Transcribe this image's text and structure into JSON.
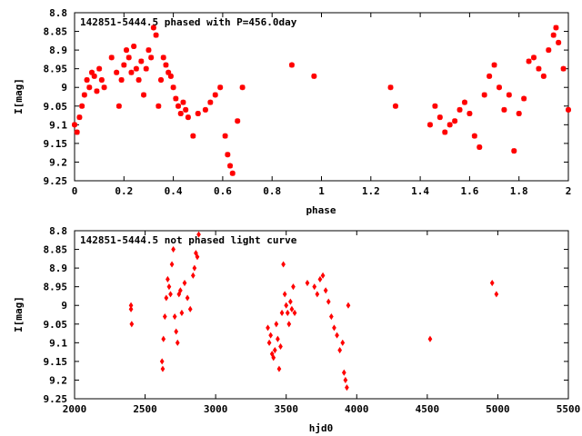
{
  "chart_data": [
    {
      "type": "scatter",
      "title": "142851-5444.5 phased with P=456.0day",
      "xlabel": "phase",
      "ylabel": "I[mag]",
      "xlim": [
        0,
        2
      ],
      "ylim": [
        9.25,
        8.8
      ],
      "y_inverted": true,
      "grid": false,
      "marker": "asterisk",
      "color": "#ff0000",
      "x_ticks": [
        "0",
        "0.2",
        "0.4",
        "0.6",
        "0.8",
        "1",
        "1.2",
        "1.4",
        "1.6",
        "1.8",
        "2"
      ],
      "y_ticks": [
        "8.8",
        "8.85",
        "8.9",
        "8.95",
        "9",
        "9.05",
        "9.1",
        "9.15",
        "9.2",
        "9.25"
      ],
      "series": [
        {
          "x": [
            0.0,
            0.01,
            0.02,
            0.03,
            0.04,
            0.05,
            0.06,
            0.07,
            0.08,
            0.09,
            0.1,
            0.11,
            0.12,
            0.15,
            0.17,
            0.18,
            0.19,
            0.2,
            0.21,
            0.22,
            0.23,
            0.24,
            0.25,
            0.26,
            0.27,
            0.28,
            0.29,
            0.3,
            0.31,
            0.32,
            0.33,
            0.34,
            0.35,
            0.36,
            0.37,
            0.38,
            0.39,
            0.4,
            0.41,
            0.42,
            0.43,
            0.44,
            0.45,
            0.46,
            0.48,
            0.5,
            0.53,
            0.55,
            0.57,
            0.59,
            0.61,
            0.62,
            0.63,
            0.64,
            0.66,
            0.68,
            0.88,
            0.97,
            1.28,
            1.3,
            1.44,
            1.46,
            1.48,
            1.5,
            1.52,
            1.54,
            1.56,
            1.58,
            1.6,
            1.62,
            1.64,
            1.66,
            1.68,
            1.7,
            1.72,
            1.74,
            1.76,
            1.78,
            1.8,
            1.82,
            1.84,
            1.86,
            1.88,
            1.9,
            1.92,
            1.94,
            1.95,
            1.96,
            1.98,
            2.0
          ],
          "y": [
            9.1,
            9.12,
            9.08,
            9.05,
            9.02,
            8.98,
            9.0,
            8.96,
            8.97,
            9.01,
            8.95,
            8.98,
            9.0,
            8.92,
            8.96,
            9.05,
            8.98,
            8.94,
            8.9,
            8.92,
            8.96,
            8.89,
            8.95,
            8.98,
            8.93,
            9.02,
            8.95,
            8.9,
            8.92,
            8.84,
            8.86,
            9.05,
            8.98,
            8.92,
            8.94,
            8.96,
            8.97,
            9.0,
            9.03,
            9.05,
            9.07,
            9.04,
            9.06,
            9.08,
            9.13,
            9.07,
            9.06,
            9.04,
            9.02,
            9.0,
            9.13,
            9.18,
            9.21,
            9.23,
            9.09,
            9.0,
            8.94,
            8.97,
            9.0,
            9.05,
            9.1,
            9.05,
            9.08,
            9.12,
            9.1,
            9.09,
            9.06,
            9.04,
            9.07,
            9.13,
            9.16,
            9.02,
            8.97,
            8.94,
            9.0,
            9.06,
            9.02,
            9.17,
            9.07,
            9.03,
            8.93,
            8.92,
            8.95,
            8.97,
            8.9,
            8.86,
            8.84,
            8.88,
            8.95,
            9.06
          ]
        }
      ]
    },
    {
      "type": "scatter",
      "title": "142851-5444.5 not phased light curve",
      "xlabel": "hjd0",
      "ylabel": "I[mag]",
      "xlim": [
        2000,
        5500
      ],
      "ylim": [
        9.25,
        8.8
      ],
      "y_inverted": true,
      "grid": false,
      "marker": "diamond",
      "color": "#ff0000",
      "x_ticks": [
        "2000",
        "2500",
        "3000",
        "3500",
        "4000",
        "4500",
        "5000",
        "5500"
      ],
      "y_ticks": [
        "8.8",
        "8.85",
        "8.9",
        "8.95",
        "9",
        "9.05",
        "9.1",
        "9.15",
        "9.2",
        "9.25"
      ],
      "series": [
        {
          "x": [
            2400,
            2400,
            2405,
            2620,
            2625,
            2630,
            2640,
            2650,
            2660,
            2670,
            2680,
            2690,
            2700,
            2710,
            2720,
            2730,
            2740,
            2750,
            2760,
            2780,
            2800,
            2820,
            2840,
            2850,
            2860,
            2870,
            2880,
            3370,
            3380,
            3390,
            3400,
            3410,
            3420,
            3430,
            3440,
            3450,
            3460,
            3470,
            3480,
            3490,
            3500,
            3510,
            3520,
            3530,
            3540,
            3550,
            3560,
            3650,
            3700,
            3720,
            3740,
            3760,
            3780,
            3800,
            3820,
            3840,
            3860,
            3880,
            3900,
            3910,
            3920,
            3930,
            3940,
            4520,
            4960,
            4990
          ],
          "y": [
            9.0,
            9.01,
            9.05,
            9.15,
            9.17,
            9.09,
            9.03,
            8.98,
            8.93,
            8.95,
            8.97,
            8.89,
            8.85,
            9.03,
            9.07,
            9.1,
            8.97,
            8.96,
            9.02,
            8.94,
            8.98,
            9.01,
            8.92,
            8.9,
            8.86,
            8.87,
            8.81,
            9.06,
            9.1,
            9.08,
            9.13,
            9.14,
            9.12,
            9.05,
            9.09,
            9.17,
            9.11,
            9.02,
            8.89,
            8.97,
            9.0,
            9.02,
            9.05,
            8.99,
            9.01,
            8.95,
            9.02,
            8.94,
            8.95,
            8.97,
            8.93,
            8.92,
            8.96,
            8.99,
            9.03,
            9.06,
            9.08,
            9.12,
            9.1,
            9.18,
            9.2,
            9.22,
            9.0,
            9.09,
            8.94,
            8.97
          ]
        }
      ]
    }
  ]
}
